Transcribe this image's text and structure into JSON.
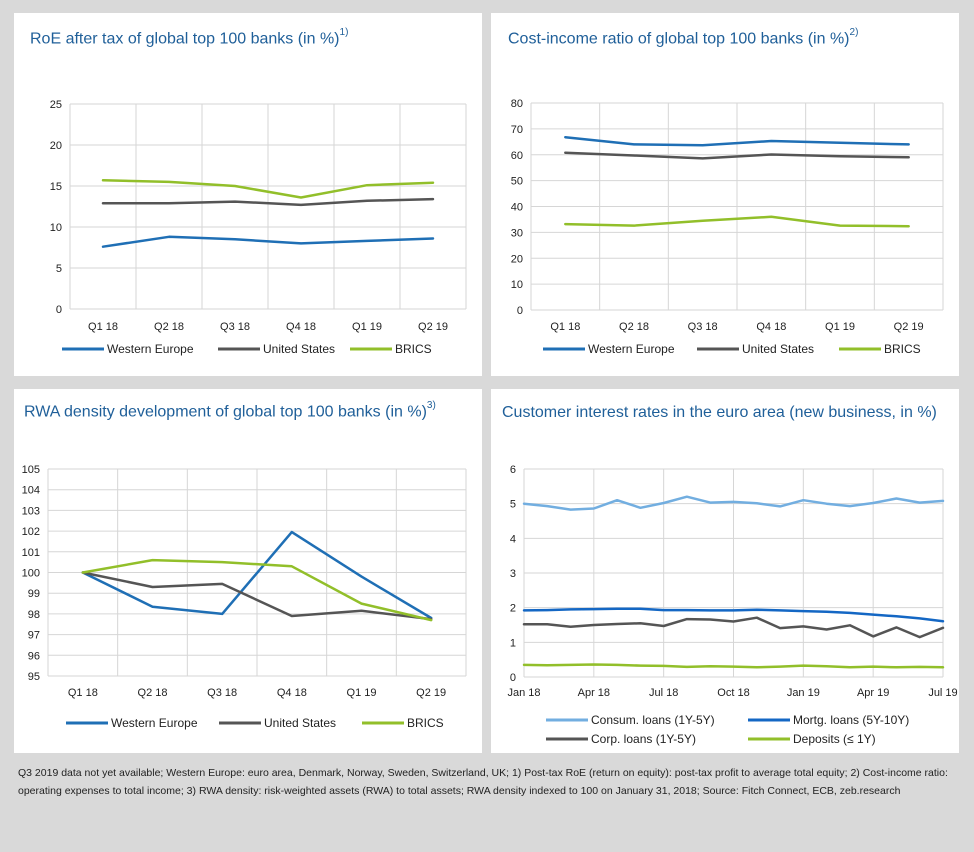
{
  "footnote": "Q3 2019 data not yet available; Western Europe: euro area, Denmark, Norway, Sweden, Switzerland, UK; 1) Post-tax RoE (return on equity): post-tax profit to average total equity; 2) Cost-income ratio: operating expenses to total income; 3) RWA density: risk-weighted assets (RWA) to total assets; RWA density indexed to 100 on January 31, 2018; Source: Fitch Connect, ECB, zeb.research",
  "panels": [
    {
      "title": "RoE after tax of global top 100 banks (in %)",
      "sup": "1)"
    },
    {
      "title": "Cost-income ratio of global top 100 banks (in %)",
      "sup": "2)"
    },
    {
      "title": "RWA density development of global top 100 banks (in %)",
      "sup": "3)"
    },
    {
      "title": "Customer interest rates in the euro area (new business, in %)",
      "sup": ""
    }
  ],
  "colors": {
    "western_europe": "#1f6fb5",
    "united_states": "#555555",
    "brics": "#92bf2a",
    "consum": "#72aee0",
    "mortg": "#1467c4",
    "corp": "#555555",
    "deposits": "#92bf2a"
  },
  "chart_data": [
    {
      "type": "line",
      "title": "RoE after tax of global top 100 banks (in %)",
      "categories": [
        "Q1 18",
        "Q2 18",
        "Q3 18",
        "Q4 18",
        "Q1 19",
        "Q2 19"
      ],
      "ylim": [
        0,
        25
      ],
      "yticks": [
        0,
        5,
        10,
        15,
        20,
        25
      ],
      "grid": true,
      "legend": "bottom",
      "series": [
        {
          "name": "Western Europe",
          "color": "#1f6fb5",
          "values": [
            7.6,
            8.8,
            8.5,
            8.0,
            8.3,
            8.6
          ]
        },
        {
          "name": "United States",
          "color": "#555555",
          "values": [
            12.9,
            12.9,
            13.1,
            12.7,
            13.2,
            13.4
          ]
        },
        {
          "name": "BRICS",
          "color": "#92bf2a",
          "values": [
            15.7,
            15.5,
            15.0,
            13.6,
            15.1,
            15.4
          ]
        }
      ]
    },
    {
      "type": "line",
      "title": "Cost-income ratio of global top 100 banks (in %)",
      "categories": [
        "Q1 18",
        "Q2 18",
        "Q3 18",
        "Q4 18",
        "Q1 19",
        "Q2 19"
      ],
      "ylim": [
        0,
        80
      ],
      "yticks": [
        0,
        10,
        20,
        30,
        40,
        50,
        60,
        70,
        80
      ],
      "grid": true,
      "legend": "bottom",
      "series": [
        {
          "name": "Western Europe",
          "color": "#1f6fb5",
          "values": [
            66.8,
            64.0,
            63.7,
            65.3,
            64.6,
            64.0
          ]
        },
        {
          "name": "United States",
          "color": "#555555",
          "values": [
            60.8,
            59.7,
            58.6,
            60.1,
            59.4,
            59.0
          ]
        },
        {
          "name": "BRICS",
          "color": "#92bf2a",
          "values": [
            33.2,
            32.6,
            34.5,
            36.0,
            32.6,
            32.4
          ]
        }
      ]
    },
    {
      "type": "line",
      "title": "RWA density development of global top 100 banks (in %)",
      "categories": [
        "Q1 18",
        "Q2 18",
        "Q3 18",
        "Q4 18",
        "Q1 19",
        "Q2 19"
      ],
      "ylim": [
        95,
        105
      ],
      "yticks": [
        95,
        96,
        97,
        98,
        99,
        100,
        101,
        102,
        103,
        104,
        105
      ],
      "grid": true,
      "legend": "bottom",
      "series": [
        {
          "name": "Western Europe",
          "color": "#1f6fb5",
          "values": [
            100.0,
            98.35,
            98.0,
            101.95,
            99.8,
            97.8
          ]
        },
        {
          "name": "United States",
          "color": "#555555",
          "values": [
            100.0,
            99.3,
            99.45,
            97.9,
            98.15,
            97.75
          ]
        },
        {
          "name": "BRICS",
          "color": "#92bf2a",
          "values": [
            100.0,
            100.6,
            100.5,
            100.3,
            98.5,
            97.7
          ]
        }
      ]
    },
    {
      "type": "line",
      "title": "Customer interest rates in the euro area (new business, in %)",
      "x": [
        "Jan 18",
        "Feb 18",
        "Mar 18",
        "Apr 18",
        "May 18",
        "Jun 18",
        "Jul 18",
        "Aug 18",
        "Sep 18",
        "Oct 18",
        "Nov 18",
        "Dec 18",
        "Jan 19",
        "Feb 19",
        "Mar 19",
        "Apr 19",
        "May 19",
        "Jun 19",
        "Jul 19"
      ],
      "xticks": [
        "Jan 18",
        "Apr 18",
        "Jul 18",
        "Oct 18",
        "Jan 19",
        "Apr 19",
        "Jul 19"
      ],
      "ylim": [
        0,
        6
      ],
      "yticks": [
        0,
        1,
        2,
        3,
        4,
        5,
        6
      ],
      "grid": true,
      "legend": "bottom",
      "series": [
        {
          "name": "Consum. loans (1Y-5Y)",
          "color": "#72aee0",
          "values": [
            5.0,
            4.93,
            4.83,
            4.86,
            5.1,
            4.88,
            5.02,
            5.2,
            5.03,
            5.05,
            5.01,
            4.92,
            5.1,
            5.0,
            4.93,
            5.02,
            5.15,
            5.03,
            5.08
          ]
        },
        {
          "name": "Mortg. loans (5Y-10Y)",
          "color": "#1467c4",
          "values": [
            1.92,
            1.93,
            1.95,
            1.96,
            1.97,
            1.97,
            1.93,
            1.93,
            1.92,
            1.92,
            1.94,
            1.92,
            1.9,
            1.88,
            1.85,
            1.8,
            1.75,
            1.69,
            1.61
          ]
        },
        {
          "name": "Corp. loans (1Y-5Y)",
          "color": "#555555",
          "values": [
            1.52,
            1.52,
            1.45,
            1.5,
            1.53,
            1.55,
            1.47,
            1.67,
            1.66,
            1.6,
            1.71,
            1.41,
            1.46,
            1.37,
            1.49,
            1.17,
            1.43,
            1.15,
            1.42
          ]
        },
        {
          "name": "Deposits (≤ 1Y)",
          "color": "#92bf2a",
          "values": [
            0.35,
            0.34,
            0.35,
            0.36,
            0.35,
            0.33,
            0.32,
            0.29,
            0.31,
            0.3,
            0.28,
            0.3,
            0.33,
            0.31,
            0.28,
            0.3,
            0.28,
            0.29,
            0.28
          ]
        }
      ]
    }
  ]
}
